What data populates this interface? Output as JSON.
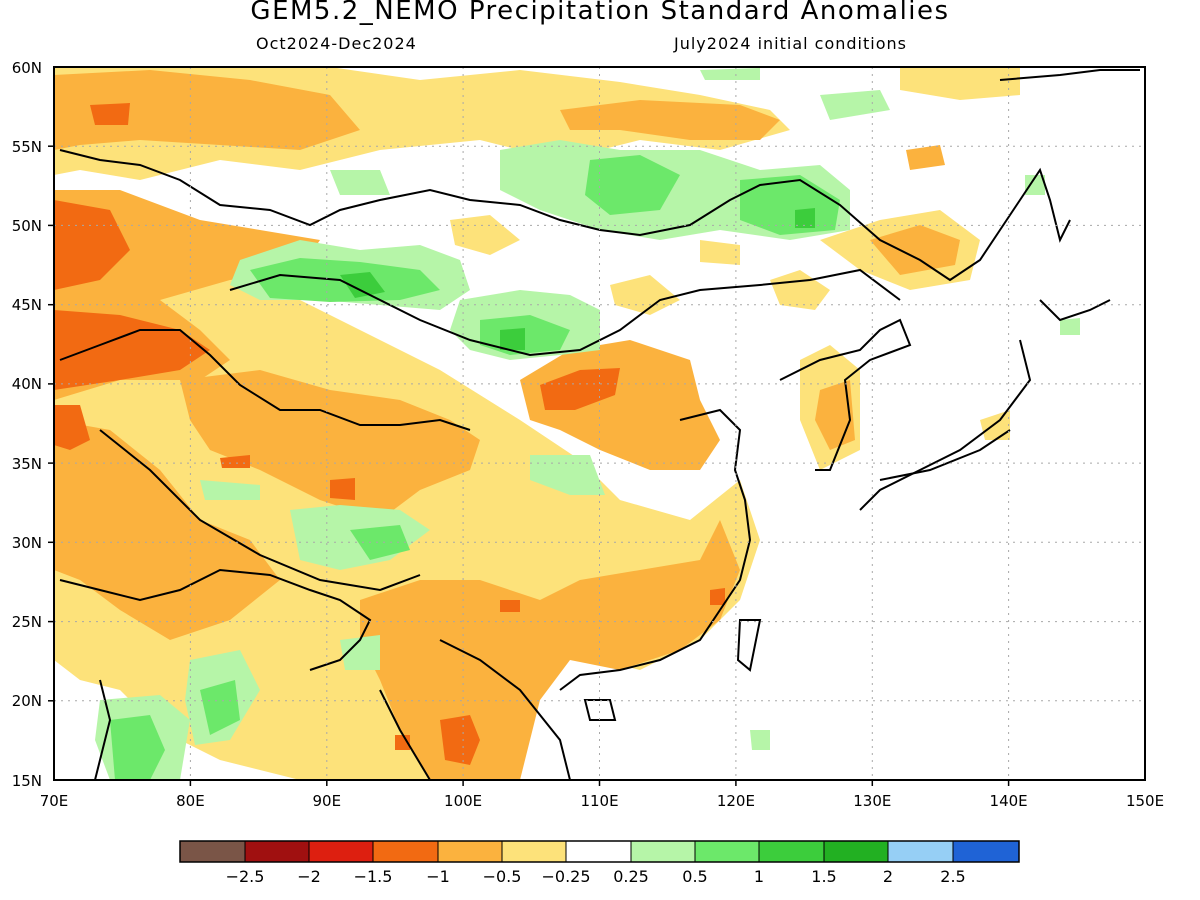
{
  "header": {
    "title": "GEM5.2_NEMO Precipitation Standard Anomalies",
    "period": "Oct2024-Dec2024",
    "initial_conditions": "July2024 initial conditions"
  },
  "axes": {
    "lat_labels": [
      "60N",
      "55N",
      "50N",
      "45N",
      "40N",
      "35N",
      "30N",
      "25N",
      "20N",
      "15N"
    ],
    "lon_labels": [
      "70E",
      "80E",
      "90E",
      "100E",
      "110E",
      "120E",
      "130E",
      "140E",
      "150E"
    ]
  },
  "colorbar": {
    "colors": [
      "#7a5547",
      "#a01010",
      "#dd1f10",
      "#f26a12",
      "#fbb23e",
      "#fde27a",
      "#ffffff",
      "#b6f5a8",
      "#6ce86a",
      "#3ccd3c",
      "#22b022",
      "#96cff5",
      "#1f63d6"
    ],
    "tick_labels": [
      "−2.5",
      "−2",
      "−1.5",
      "−1",
      "−0.5",
      "−0.25",
      "0.25",
      "0.5",
      "1",
      "1.5",
      "2",
      "2.5"
    ]
  }
}
